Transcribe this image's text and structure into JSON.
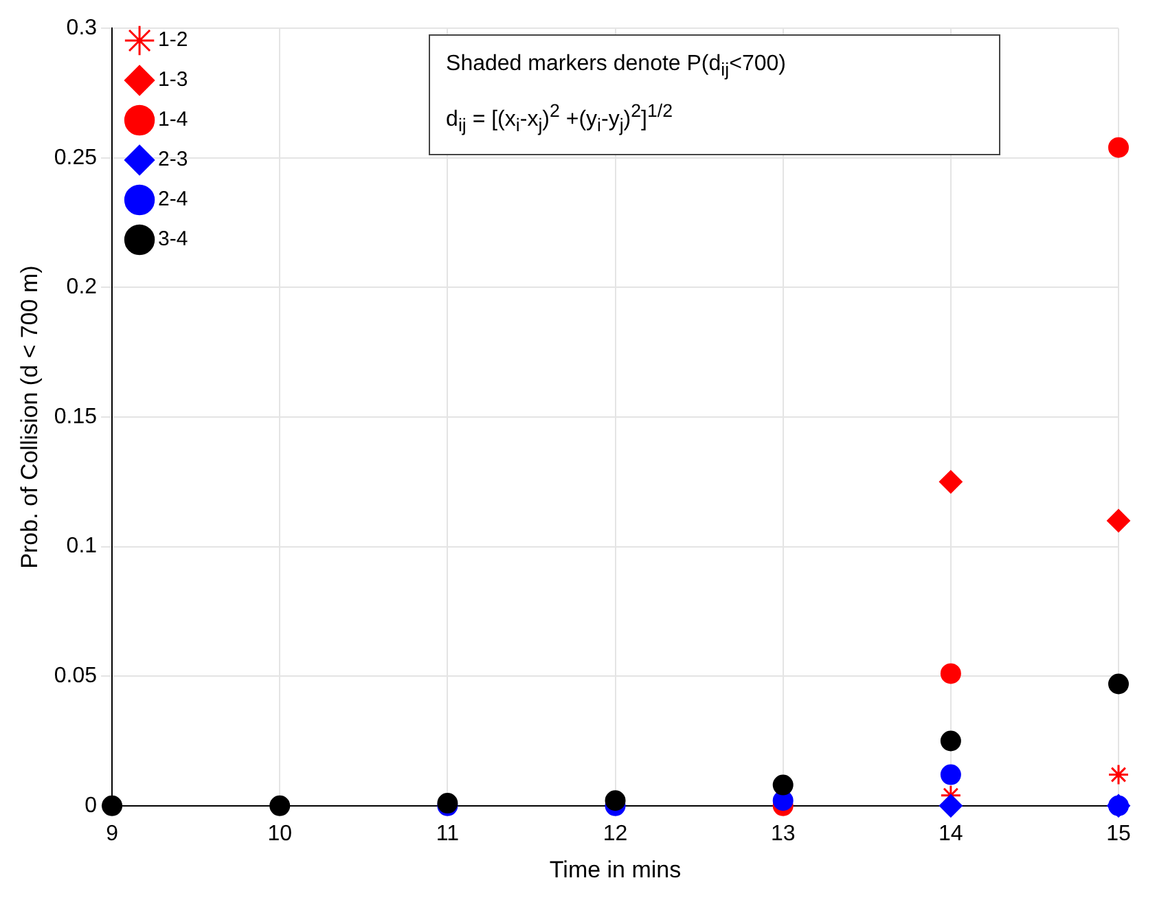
{
  "chart_data": {
    "type": "scatter",
    "xlabel": "Time in mins",
    "ylabel": "Prob. of Collision (d < 700 m)",
    "x": [
      9,
      10,
      11,
      12,
      13,
      14,
      15
    ],
    "series": [
      {
        "name": "1-2",
        "color": "#ff0000",
        "marker": "cross",
        "values": [
          null,
          null,
          null,
          null,
          null,
          0.004,
          0.012
        ]
      },
      {
        "name": "1-3",
        "color": "#ff0000",
        "marker": "diamond",
        "values": [
          null,
          null,
          null,
          null,
          null,
          0.125,
          0.11
        ]
      },
      {
        "name": "1-4",
        "color": "#ff0000",
        "marker": "circle",
        "values": [
          null,
          null,
          null,
          null,
          0,
          0.051,
          0.254
        ]
      },
      {
        "name": "2-3",
        "color": "#0000ff",
        "marker": "diamond",
        "values": [
          null,
          null,
          null,
          null,
          null,
          0,
          0
        ]
      },
      {
        "name": "2-4",
        "color": "#0000ff",
        "marker": "circle",
        "values": [
          null,
          null,
          0,
          0,
          0.002,
          0.012,
          0
        ]
      },
      {
        "name": "3-4",
        "color": "#000000",
        "marker": "circle",
        "values": [
          0,
          0,
          0.001,
          0.002,
          0.008,
          0.025,
          0.047
        ]
      }
    ],
    "xlim": [
      9,
      15
    ],
    "xticks": [
      9,
      10,
      11,
      12,
      13,
      14,
      15
    ],
    "ylim": [
      0,
      0.3
    ],
    "yticks": [
      0,
      0.05,
      0.1,
      0.15,
      0.2,
      0.25,
      0.3
    ],
    "grid": true,
    "legend": "top left",
    "annotations": [
      "Shaded markers denote P(d$_{ij}$<700)",
      "d$_{ij}$ = [(x$_{i}$-x$_{j}$)$^{2}$ +(y$_{i}$-y$_{j}$)$^{2}$]$^{1/2}$"
    ]
  }
}
